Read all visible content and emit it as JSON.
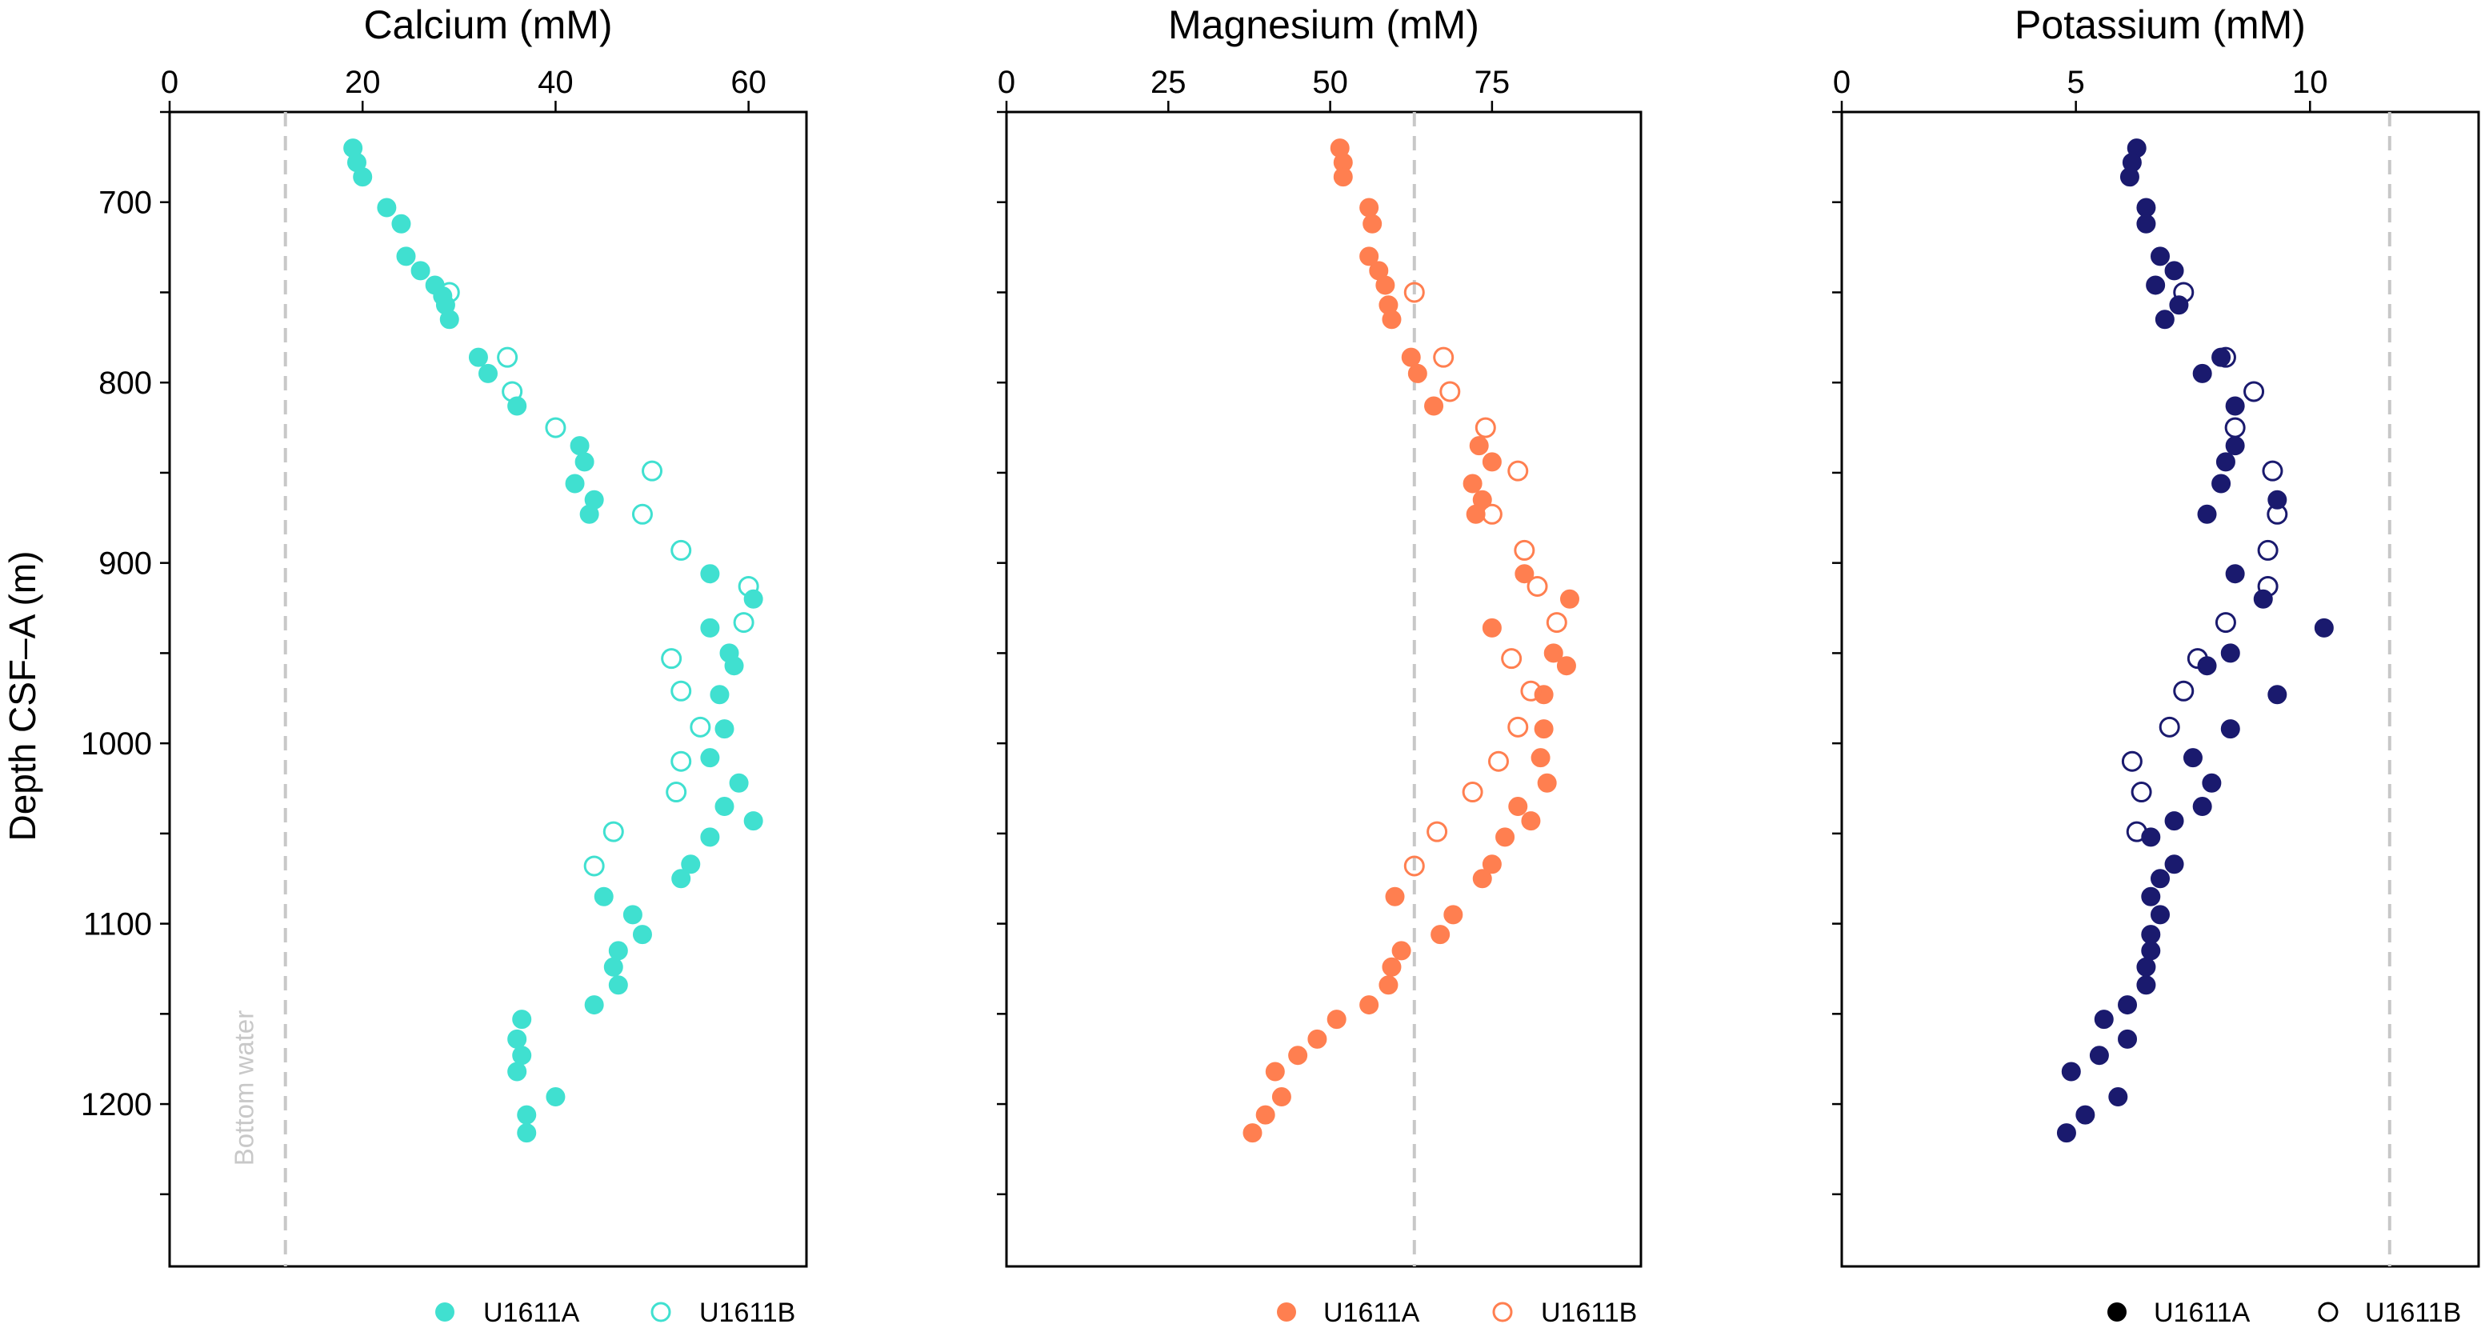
{
  "chart_data": [
    {
      "type": "scatter",
      "title": "Calcium (mM)",
      "ylabel": "Depth CSF–A (m)",
      "xlim": [
        0,
        66
      ],
      "ylim": [
        1290,
        650
      ],
      "x_ticks": [
        0,
        20,
        40,
        60
      ],
      "y_ticks": [
        700,
        800,
        900,
        1000,
        1100,
        1200
      ],
      "reference_line": {
        "x": 12,
        "label": "Bottom water"
      },
      "color": "#40e0d0",
      "series": [
        {
          "name": "U1611A",
          "marker": "filled",
          "points": [
            [
              19,
              670
            ],
            [
              19.4,
              678
            ],
            [
              20,
              686
            ],
            [
              22.5,
              703
            ],
            [
              24,
              712
            ],
            [
              24.5,
              730
            ],
            [
              26,
              738
            ],
            [
              27.5,
              746
            ],
            [
              28.3,
              752
            ],
            [
              28.6,
              757
            ],
            [
              29,
              765
            ],
            [
              32,
              786
            ],
            [
              33,
              795
            ],
            [
              36,
              813
            ],
            [
              42.5,
              835
            ],
            [
              43,
              844
            ],
            [
              42,
              856
            ],
            [
              44,
              865
            ],
            [
              43.5,
              873
            ],
            [
              56,
              906
            ],
            [
              60.5,
              920
            ],
            [
              56,
              936
            ],
            [
              58,
              950
            ],
            [
              58.5,
              957
            ],
            [
              57,
              973
            ],
            [
              57.5,
              992
            ],
            [
              56,
              1008
            ],
            [
              59,
              1022
            ],
            [
              57.5,
              1035
            ],
            [
              60.5,
              1043
            ],
            [
              56,
              1052
            ],
            [
              54,
              1067
            ],
            [
              53,
              1075
            ],
            [
              45,
              1085
            ],
            [
              48,
              1095
            ],
            [
              49,
              1106
            ],
            [
              46.5,
              1115
            ],
            [
              46,
              1124
            ],
            [
              46.5,
              1134
            ],
            [
              44,
              1145
            ],
            [
              36.5,
              1153
            ],
            [
              36,
              1164
            ],
            [
              36.5,
              1173
            ],
            [
              36,
              1182
            ],
            [
              40,
              1196
            ],
            [
              37,
              1206
            ],
            [
              37,
              1216
            ]
          ]
        },
        {
          "name": "U1611B",
          "marker": "open",
          "points": [
            [
              29,
              750
            ],
            [
              35,
              786
            ],
            [
              35.5,
              805
            ],
            [
              40,
              825
            ],
            [
              50,
              849
            ],
            [
              49,
              873
            ],
            [
              53,
              893
            ],
            [
              60,
              913
            ],
            [
              59.5,
              933
            ],
            [
              52,
              953
            ],
            [
              53,
              971
            ],
            [
              55,
              991
            ],
            [
              53,
              1010
            ],
            [
              52.5,
              1027
            ],
            [
              46,
              1049
            ],
            [
              44,
              1068
            ]
          ]
        }
      ]
    },
    {
      "type": "scatter",
      "title": "Magnesium (mM)",
      "xlim": [
        0,
        98
      ],
      "ylim": [
        1290,
        650
      ],
      "x_ticks": [
        0,
        25,
        50,
        75
      ],
      "y_ticks": [
        700,
        800,
        900,
        1000,
        1100,
        1200
      ],
      "reference_line": {
        "x": 63
      },
      "color": "#ff7f50",
      "series": [
        {
          "name": "U1611A",
          "marker": "filled",
          "points": [
            [
              51.5,
              670
            ],
            [
              52,
              678
            ],
            [
              52,
              686
            ],
            [
              56,
              703
            ],
            [
              56.5,
              712
            ],
            [
              56,
              730
            ],
            [
              57.5,
              738
            ],
            [
              58.5,
              746
            ],
            [
              59,
              757
            ],
            [
              59.5,
              765
            ],
            [
              62.5,
              786
            ],
            [
              63.5,
              795
            ],
            [
              66,
              813
            ],
            [
              73,
              835
            ],
            [
              75,
              844
            ],
            [
              72,
              856
            ],
            [
              73.5,
              865
            ],
            [
              72.5,
              873
            ],
            [
              80,
              906
            ],
            [
              87,
              920
            ],
            [
              75,
              936
            ],
            [
              84.5,
              950
            ],
            [
              86.5,
              957
            ],
            [
              83,
              973
            ],
            [
              83,
              992
            ],
            [
              82.5,
              1008
            ],
            [
              83.5,
              1022
            ],
            [
              79,
              1035
            ],
            [
              81,
              1043
            ],
            [
              77,
              1052
            ],
            [
              75,
              1067
            ],
            [
              73.5,
              1075
            ],
            [
              60,
              1085
            ],
            [
              69,
              1095
            ],
            [
              67,
              1106
            ],
            [
              61,
              1115
            ],
            [
              59.5,
              1124
            ],
            [
              59,
              1134
            ],
            [
              56,
              1145
            ],
            [
              51,
              1153
            ],
            [
              48,
              1164
            ],
            [
              45,
              1173
            ],
            [
              41.5,
              1182
            ],
            [
              42.5,
              1196
            ],
            [
              40,
              1206
            ],
            [
              38,
              1216
            ]
          ]
        },
        {
          "name": "U1611B",
          "marker": "open",
          "points": [
            [
              63,
              750
            ],
            [
              67.5,
              786
            ],
            [
              68.5,
              805
            ],
            [
              74,
              825
            ],
            [
              79,
              849
            ],
            [
              75,
              873
            ],
            [
              80,
              893
            ],
            [
              82,
              913
            ],
            [
              85,
              933
            ],
            [
              78,
              953
            ],
            [
              81,
              971
            ],
            [
              79,
              991
            ],
            [
              76,
              1010
            ],
            [
              72,
              1027
            ],
            [
              66.5,
              1049
            ],
            [
              63,
              1068
            ]
          ]
        }
      ]
    },
    {
      "type": "scatter",
      "title": "Potassium (mM)",
      "xlim": [
        0,
        13.6
      ],
      "ylim": [
        1290,
        650
      ],
      "x_ticks": [
        0,
        5,
        10
      ],
      "y_ticks": [
        700,
        800,
        900,
        1000,
        1100,
        1200
      ],
      "reference_line": {
        "x": 11.7
      },
      "color": "#1a1a6e",
      "series": [
        {
          "name": "U1611A",
          "marker": "filled",
          "points": [
            [
              6.3,
              670
            ],
            [
              6.2,
              678
            ],
            [
              6.15,
              686
            ],
            [
              6.5,
              703
            ],
            [
              6.5,
              712
            ],
            [
              6.8,
              730
            ],
            [
              7.1,
              738
            ],
            [
              6.7,
              746
            ],
            [
              7.2,
              757
            ],
            [
              6.9,
              765
            ],
            [
              8.1,
              786
            ],
            [
              7.7,
              795
            ],
            [
              8.4,
              813
            ],
            [
              8.4,
              835
            ],
            [
              8.2,
              844
            ],
            [
              8.1,
              856
            ],
            [
              9.3,
              865
            ],
            [
              7.8,
              873
            ],
            [
              8.4,
              906
            ],
            [
              9.0,
              920
            ],
            [
              10.3,
              936
            ],
            [
              8.3,
              950
            ],
            [
              7.8,
              957
            ],
            [
              9.3,
              973
            ],
            [
              8.3,
              992
            ],
            [
              7.5,
              1008
            ],
            [
              7.9,
              1022
            ],
            [
              7.7,
              1035
            ],
            [
              7.1,
              1043
            ],
            [
              6.6,
              1052
            ],
            [
              7.1,
              1067
            ],
            [
              6.8,
              1075
            ],
            [
              6.6,
              1085
            ],
            [
              6.8,
              1095
            ],
            [
              6.6,
              1106
            ],
            [
              6.6,
              1115
            ],
            [
              6.5,
              1124
            ],
            [
              6.5,
              1134
            ],
            [
              6.1,
              1145
            ],
            [
              5.6,
              1153
            ],
            [
              6.1,
              1164
            ],
            [
              5.5,
              1173
            ],
            [
              4.9,
              1182
            ],
            [
              5.9,
              1196
            ],
            [
              5.2,
              1206
            ],
            [
              4.8,
              1216
            ]
          ]
        },
        {
          "name": "U1611B",
          "marker": "open",
          "points": [
            [
              7.3,
              750
            ],
            [
              8.2,
              786
            ],
            [
              8.8,
              805
            ],
            [
              8.4,
              825
            ],
            [
              9.2,
              849
            ],
            [
              9.3,
              873
            ],
            [
              9.1,
              893
            ],
            [
              9.1,
              913
            ],
            [
              8.2,
              933
            ],
            [
              7.6,
              953
            ],
            [
              7.3,
              971
            ],
            [
              7.0,
              991
            ],
            [
              6.2,
              1010
            ],
            [
              6.4,
              1027
            ],
            [
              6.3,
              1049
            ]
          ]
        }
      ]
    }
  ]
}
